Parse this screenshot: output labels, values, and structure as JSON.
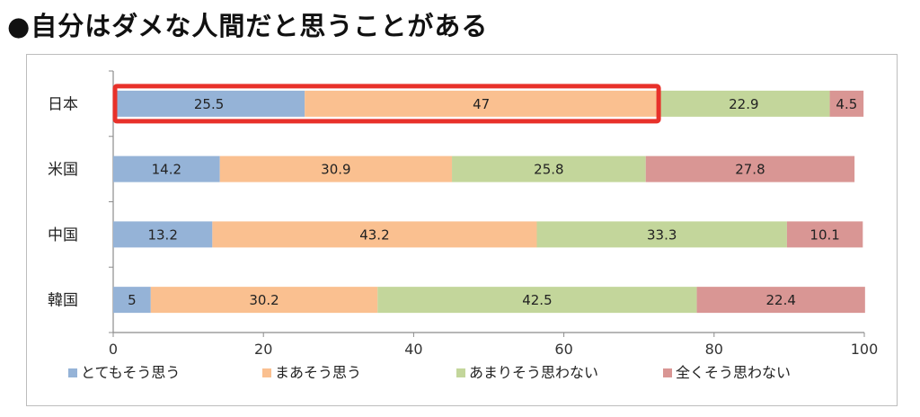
{
  "title": "●自分はダメな人間だと思うことがある",
  "chart_data": {
    "type": "bar",
    "orientation": "horizontal",
    "stacked": true,
    "categories": [
      "日本",
      "米国",
      "中国",
      "韓国"
    ],
    "series": [
      {
        "name": "とてもそう思う",
        "color": "#95b3d7",
        "values": [
          25.5,
          14.2,
          13.2,
          5
        ]
      },
      {
        "name": "まあそう思う",
        "color": "#fac090",
        "values": [
          47,
          30.9,
          43.2,
          30.2
        ]
      },
      {
        "name": "あまりそう思わない",
        "color": "#c3d69b",
        "values": [
          22.9,
          25.8,
          33.3,
          42.5
        ]
      },
      {
        "name": "全くそう思わない",
        "color": "#d99694",
        "values": [
          4.5,
          27.8,
          10.1,
          22.4
        ]
      }
    ],
    "xlim": [
      0,
      100
    ],
    "xticks": [
      0,
      20,
      40,
      60,
      80,
      100
    ],
    "legend_position": "bottom",
    "grid": false,
    "highlight": {
      "category": "日本",
      "series": [
        "とてもそう思う",
        "まあそう思う"
      ],
      "color": "#e8312a"
    }
  }
}
